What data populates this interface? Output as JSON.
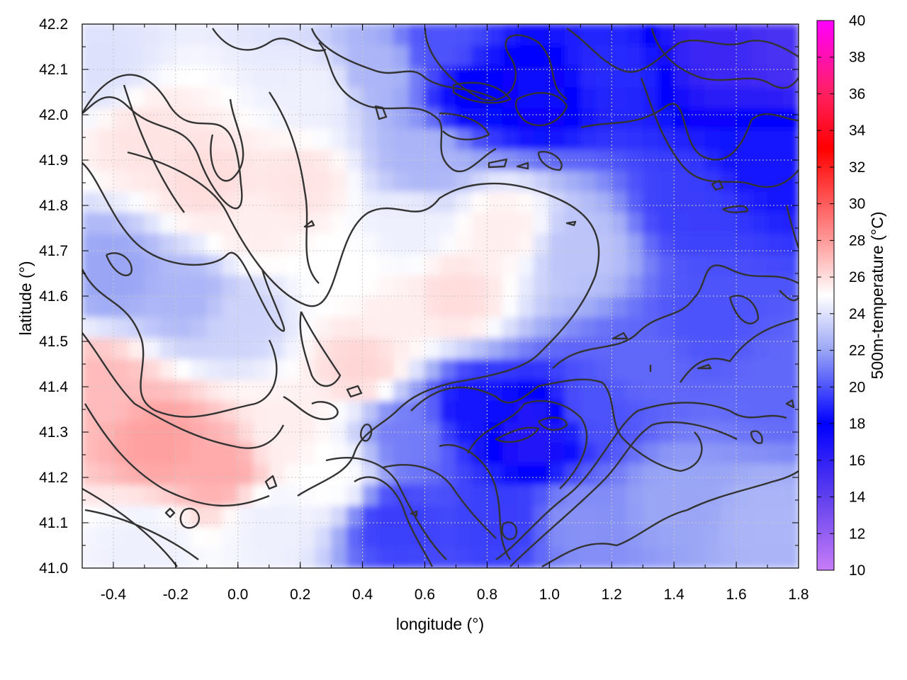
{
  "chart_data": {
    "type": "heatmap",
    "title": "",
    "xlabel": "longitude (°)",
    "ylabel": "latitude (°)",
    "xlim": [
      -0.5,
      1.8
    ],
    "ylim": [
      41.0,
      42.2
    ],
    "xticks": [
      "-0.4",
      "-0.2",
      "0.0",
      "0.2",
      "0.4",
      "0.6",
      "0.8",
      "1.0",
      "1.2",
      "1.4",
      "1.6",
      "1.8"
    ],
    "xtick_values": [
      -0.4,
      -0.2,
      0.0,
      0.2,
      0.4,
      0.6,
      0.8,
      1.0,
      1.2,
      1.4,
      1.6,
      1.8
    ],
    "yticks": [
      "41.0",
      "41.1",
      "41.2",
      "41.3",
      "41.4",
      "41.5",
      "41.6",
      "41.7",
      "41.8",
      "41.9",
      "42.0",
      "42.1",
      "42.2"
    ],
    "ytick_values": [
      41.0,
      41.1,
      41.2,
      41.3,
      41.4,
      41.5,
      41.6,
      41.7,
      41.8,
      41.9,
      42.0,
      42.1,
      42.2
    ],
    "colorbar": {
      "label": "500m-temperature (°C)",
      "range": [
        10,
        40
      ],
      "ticks": [
        "10",
        "12",
        "14",
        "16",
        "18",
        "20",
        "22",
        "24",
        "26",
        "28",
        "30",
        "32",
        "34",
        "36",
        "38",
        "40"
      ],
      "tick_values": [
        10,
        12,
        14,
        16,
        18,
        20,
        22,
        24,
        26,
        28,
        30,
        32,
        34,
        36,
        38,
        40
      ],
      "stops": [
        {
          "value": 10,
          "color": "#c77cf7"
        },
        {
          "value": 14,
          "color": "#6040ee"
        },
        {
          "value": 18,
          "color": "#0000ff"
        },
        {
          "value": 22,
          "color": "#9aa6f5"
        },
        {
          "value": 25,
          "color": "#ffffff"
        },
        {
          "value": 28,
          "color": "#ff9999"
        },
        {
          "value": 33,
          "color": "#ff0000"
        },
        {
          "value": 36,
          "color": "#ff2060"
        },
        {
          "value": 40,
          "color": "#ff00ff"
        }
      ]
    },
    "temperature_samples": [
      {
        "lon": -0.45,
        "lat": 42.1,
        "t": 24.0
      },
      {
        "lon": -0.3,
        "lat": 41.95,
        "t": 25.8
      },
      {
        "lon": -0.1,
        "lat": 41.85,
        "t": 26.0
      },
      {
        "lon": 0.05,
        "lat": 41.75,
        "t": 25.5
      },
      {
        "lon": 0.2,
        "lat": 41.85,
        "t": 25.8
      },
      {
        "lon": 0.25,
        "lat": 42.05,
        "t": 24.5
      },
      {
        "lon": 0.45,
        "lat": 42.1,
        "t": 22.5
      },
      {
        "lon": 0.65,
        "lat": 42.15,
        "t": 20.0
      },
      {
        "lon": 0.75,
        "lat": 42.05,
        "t": 18.0
      },
      {
        "lon": 0.95,
        "lat": 42.05,
        "t": 17.5
      },
      {
        "lon": 1.2,
        "lat": 42.1,
        "t": 19.0
      },
      {
        "lon": 1.55,
        "lat": 42.15,
        "t": 15.5
      },
      {
        "lon": 1.75,
        "lat": 42.15,
        "t": 15.0
      },
      {
        "lon": 1.7,
        "lat": 41.9,
        "t": 18.5
      },
      {
        "lon": 1.45,
        "lat": 41.8,
        "t": 19.5
      },
      {
        "lon": 1.5,
        "lat": 41.55,
        "t": 20.0
      },
      {
        "lon": 1.75,
        "lat": 41.4,
        "t": 20.5
      },
      {
        "lon": 1.3,
        "lat": 41.45,
        "t": 20.5
      },
      {
        "lon": 1.1,
        "lat": 41.7,
        "t": 23.0
      },
      {
        "lon": 0.85,
        "lat": 41.75,
        "t": 25.5
      },
      {
        "lon": 0.7,
        "lat": 41.6,
        "t": 26.0
      },
      {
        "lon": 0.5,
        "lat": 41.55,
        "t": 25.5
      },
      {
        "lon": 0.35,
        "lat": 41.65,
        "t": 25.0
      },
      {
        "lon": 0.4,
        "lat": 41.45,
        "t": 26.2
      },
      {
        "lon": 0.0,
        "lat": 41.55,
        "t": 23.5
      },
      {
        "lon": -0.15,
        "lat": 41.6,
        "t": 22.5
      },
      {
        "lon": -0.4,
        "lat": 41.65,
        "t": 22.0
      },
      {
        "lon": -0.45,
        "lat": 41.4,
        "t": 27.0
      },
      {
        "lon": -0.25,
        "lat": 41.28,
        "t": 27.8
      },
      {
        "lon": -0.05,
        "lat": 41.22,
        "t": 27.5
      },
      {
        "lon": 0.15,
        "lat": 41.3,
        "t": 25.5
      },
      {
        "lon": 0.1,
        "lat": 41.1,
        "t": 24.5
      },
      {
        "lon": -0.3,
        "lat": 41.05,
        "t": 24.5
      },
      {
        "lon": 0.3,
        "lat": 41.2,
        "t": 25.0
      },
      {
        "lon": 0.5,
        "lat": 41.1,
        "t": 19.5
      },
      {
        "lon": 0.55,
        "lat": 41.3,
        "t": 21.0
      },
      {
        "lon": 0.75,
        "lat": 41.35,
        "t": 18.5
      },
      {
        "lon": 0.95,
        "lat": 41.3,
        "t": 16.5
      },
      {
        "lon": 0.85,
        "lat": 41.1,
        "t": 19.5
      },
      {
        "lon": 1.1,
        "lat": 41.1,
        "t": 21.5
      },
      {
        "lon": 1.4,
        "lat": 41.15,
        "t": 22.0
      },
      {
        "lon": 1.7,
        "lat": 41.1,
        "t": 22.5
      },
      {
        "lon": 1.15,
        "lat": 41.35,
        "t": 20.0
      },
      {
        "lon": 0.6,
        "lat": 41.9,
        "t": 22.5
      },
      {
        "lon": 0.55,
        "lat": 41.75,
        "t": 24.5
      }
    ]
  }
}
